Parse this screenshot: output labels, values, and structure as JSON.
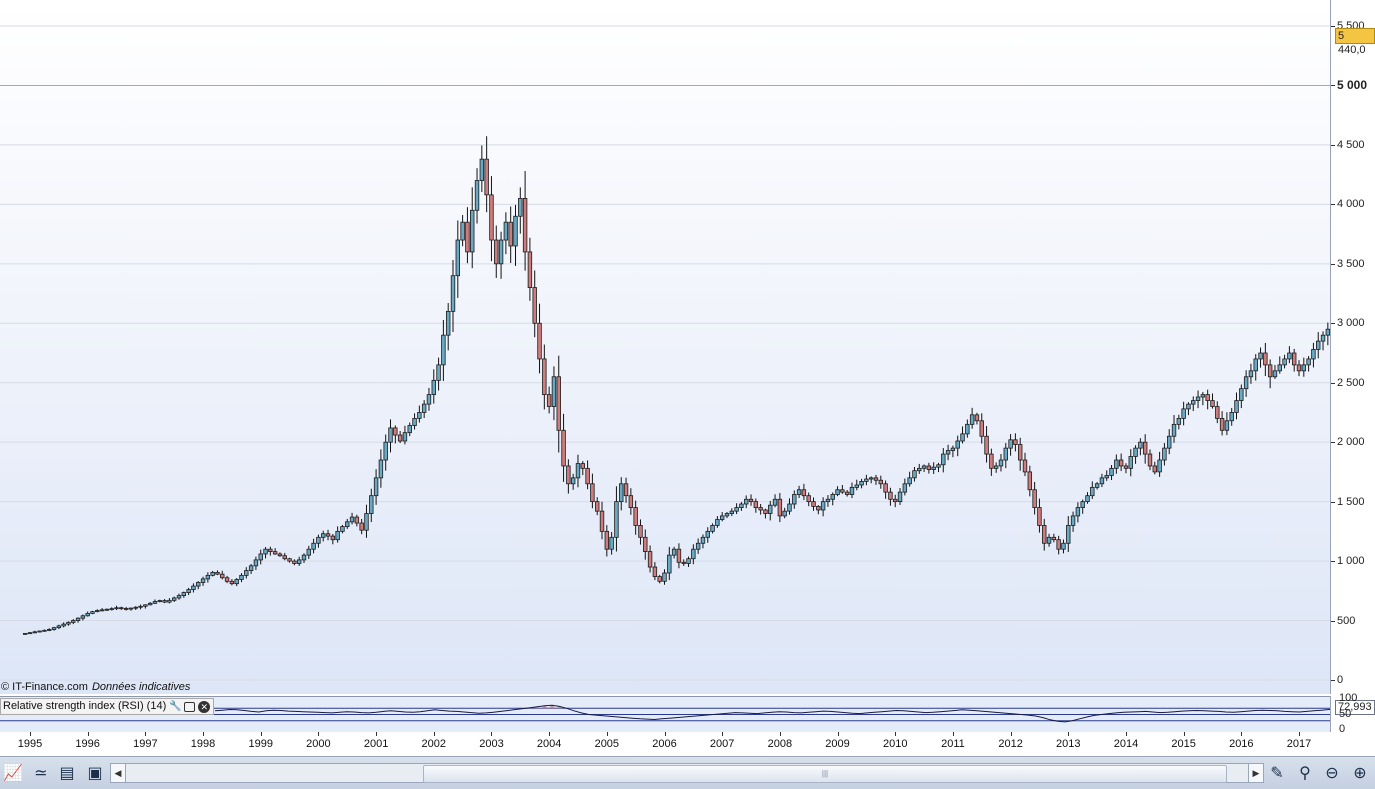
{
  "chart_data": {
    "type": "candlestick",
    "title": "",
    "xlabel": "",
    "ylabel": "",
    "x_ticks": [
      "1995",
      "1996",
      "1997",
      "1998",
      "1999",
      "2000",
      "2001",
      "2002",
      "2003",
      "2004",
      "2005",
      "2006",
      "2007",
      "2008",
      "2009",
      "2010",
      "2011",
      "2012",
      "2013",
      "2014",
      "2015",
      "2016",
      "2017"
    ],
    "y_ticks": [
      "0",
      "500",
      "1 000",
      "1 500",
      "2 000",
      "2 500",
      "3 000",
      "3 500",
      "4 000",
      "4 500",
      "5 000",
      "5 500"
    ],
    "ylim": [
      0,
      5500
    ],
    "last_price": "5 440,0",
    "series": [
      {
        "name": "",
        "note": "monthly closes, estimated",
        "x_start": "1994-12",
        "values": [
          392,
          398,
          405,
          412,
          418,
          425,
          440,
          455,
          470,
          485,
          500,
          520,
          540,
          560,
          575,
          585,
          590,
          595,
          600,
          608,
          602,
          598,
          605,
          612,
          620,
          632,
          645,
          660,
          668,
          655,
          670,
          690,
          710,
          735,
          760,
          790,
          820,
          850,
          880,
          905,
          890,
          860,
          830,
          810,
          845,
          880,
          920,
          960,
          1010,
          1060,
          1100,
          1080,
          1060,
          1045,
          1020,
          1000,
          980,
          1010,
          1050,
          1100,
          1150,
          1200,
          1230,
          1210,
          1180,
          1250,
          1290,
          1330,
          1370,
          1320,
          1260,
          1400,
          1550,
          1700,
          1850,
          2000,
          2120,
          2060,
          2010,
          2080,
          2140,
          2200,
          2250,
          2320,
          2400,
          2520,
          2650,
          2900,
          3100,
          3400,
          3700,
          3850,
          3600,
          3950,
          4200,
          4380,
          4080,
          3700,
          3500,
          3700,
          3850,
          3650,
          3900,
          4050,
          3600,
          3300,
          3000,
          2700,
          2400,
          2300,
          2550,
          2100,
          1800,
          1650,
          1700,
          1820,
          1780,
          1650,
          1500,
          1420,
          1250,
          1100,
          1200,
          1500,
          1650,
          1550,
          1450,
          1300,
          1200,
          1080,
          950,
          870,
          830,
          900,
          1050,
          1100,
          990,
          980,
          1020,
          1100,
          1150,
          1200,
          1250,
          1300,
          1350,
          1380,
          1400,
          1420,
          1450,
          1480,
          1520,
          1500,
          1450,
          1430,
          1400,
          1470,
          1520,
          1380,
          1420,
          1480,
          1560,
          1600,
          1550,
          1500,
          1460,
          1430,
          1500,
          1520,
          1560,
          1600,
          1580,
          1560,
          1620,
          1640,
          1670,
          1690,
          1700,
          1680,
          1650,
          1580,
          1520,
          1500,
          1580,
          1650,
          1700,
          1760,
          1780,
          1800,
          1770,
          1790,
          1810,
          1900,
          1930,
          1950,
          2010,
          2070,
          2150,
          2230,
          2180,
          2050,
          1900,
          1780,
          1800,
          1850,
          1950,
          2020,
          1980,
          1850,
          1750,
          1600,
          1450,
          1300,
          1150,
          1200,
          1180,
          1100,
          1150,
          1300,
          1380,
          1450,
          1500,
          1550,
          1620,
          1650,
          1700,
          1720,
          1780,
          1850,
          1800,
          1780,
          1880,
          1950,
          2000,
          1900,
          1800,
          1750,
          1850,
          1950,
          2050,
          2150,
          2200,
          2280,
          2320,
          2350,
          2380,
          2400,
          2350,
          2300,
          2200,
          2100,
          2180,
          2250,
          2350,
          2450,
          2550,
          2600,
          2700,
          2750,
          2650,
          2550,
          2600,
          2650,
          2700,
          2750,
          2650,
          2600,
          2650,
          2700,
          2780,
          2850,
          2900,
          2950,
          3050,
          3100,
          3200,
          3300,
          3400,
          3480,
          3520,
          3600,
          3550,
          3500,
          3650,
          3700,
          3750,
          3800,
          3900,
          3950,
          4050,
          4150,
          4250,
          4300,
          4200,
          4150,
          4300,
          4400,
          4450,
          4500,
          4400,
          4550,
          4650,
          4600,
          4100,
          4400,
          4700,
          4600,
          4550,
          4200,
          4150,
          4350,
          4400,
          4500,
          4450,
          4550,
          4650,
          4750,
          4800,
          4850,
          4900,
          4950,
          5100,
          5250,
          5350,
          5440
        ]
      }
    ],
    "rsi": {
      "label": "Relative strength index (RSI) (14)",
      "last_value": "72,993",
      "levels": [
        30,
        50,
        70
      ],
      "y_ticks": [
        "0",
        "50",
        "100"
      ],
      "values": [
        62,
        64,
        66,
        65,
        63,
        60,
        58,
        62,
        64,
        63,
        61,
        60,
        59,
        58,
        57,
        56,
        55,
        57,
        59,
        58,
        56,
        55,
        57,
        60,
        62,
        60,
        58,
        57,
        59,
        62,
        65,
        63,
        61,
        60,
        58,
        56,
        54,
        55,
        57,
        60,
        63,
        66,
        69,
        72,
        75,
        78,
        80,
        76,
        70,
        62,
        55,
        50,
        48,
        46,
        44,
        42,
        40,
        38,
        36,
        35,
        34,
        36,
        38,
        40,
        42,
        44,
        46,
        48,
        50,
        52,
        54,
        56,
        55,
        54,
        53,
        55,
        57,
        59,
        58,
        56,
        55,
        57,
        59,
        61,
        60,
        58,
        56,
        54,
        53,
        55,
        57,
        59,
        61,
        63,
        62,
        60,
        58,
        56,
        57,
        59,
        61,
        63,
        65,
        64,
        62,
        60,
        58,
        56,
        54,
        52,
        50,
        48,
        45,
        40,
        33,
        28,
        26,
        30,
        36,
        42,
        47,
        50,
        53,
        55,
        57,
        58,
        59,
        60,
        58,
        56,
        57,
        59,
        61,
        62,
        63,
        62,
        61,
        60,
        58,
        57,
        59,
        61,
        63,
        64,
        63,
        62,
        60,
        59,
        58,
        60,
        62,
        64,
        66,
        68,
        70,
        71,
        70,
        68,
        67,
        69,
        71,
        72,
        70,
        68,
        66,
        64,
        62,
        55,
        52,
        56,
        60,
        62,
        58,
        55,
        57,
        60,
        62,
        61,
        60,
        61,
        63,
        65,
        67,
        68,
        70,
        72,
        73
      ]
    }
  },
  "credit": {
    "source": "© IT-Finance.com",
    "note": "Données indicatives"
  },
  "toolbar": {
    "scroll_grip": "|||"
  },
  "colors": {
    "up": "#6aa9c4",
    "down": "#cd7d7d",
    "wick": "#111111",
    "rsi_line": "#1a1a40",
    "rsi_overbought_fill": "#c98a9a"
  }
}
